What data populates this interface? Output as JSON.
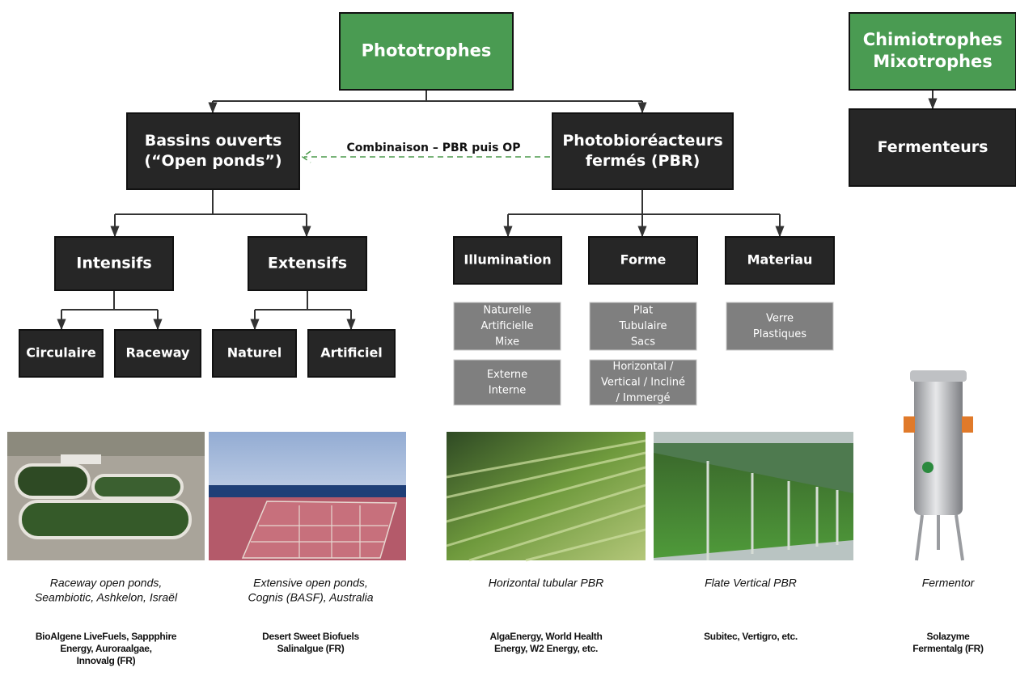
{
  "boxes": [
    {
      "lines": [
        "Phototrophes"
      ]
    },
    {
      "lines": [
        "Chimiotrophes",
        "Mixotrophes"
      ]
    },
    {
      "lines": [
        "Bassins ouverts",
        "(“Open ponds”)"
      ]
    },
    {
      "lines": [
        "Photobioréacteurs",
        "fermés (PBR)"
      ]
    },
    {
      "lines": [
        "Fermenteurs"
      ]
    },
    {
      "lines": [
        "Intensifs"
      ]
    },
    {
      "lines": [
        "Extensifs"
      ]
    },
    {
      "lines": [
        "Circulaire"
      ]
    },
    {
      "lines": [
        "Raceway"
      ]
    },
    {
      "lines": [
        "Naturel"
      ]
    },
    {
      "lines": [
        "Artificiel"
      ]
    },
    {
      "lines": [
        "Illumination"
      ]
    },
    {
      "lines": [
        "Forme"
      ]
    },
    {
      "lines": [
        "Materiau"
      ]
    },
    {
      "lines": [
        "Naturelle",
        "Artificielle",
        "Mixe"
      ]
    },
    {
      "lines": [
        "Externe",
        "Interne"
      ]
    },
    {
      "lines": [
        "Plat",
        "Tubulaire",
        "Sacs"
      ]
    },
    {
      "lines": [
        "Horizontal /",
        "Vertical / Incliné",
        "/ Immergé"
      ]
    },
    {
      "lines": [
        "Verre",
        "Plastiques"
      ]
    }
  ],
  "combination_label": "Combinaison – PBR puis OP",
  "captions": [
    {
      "title": [
        "Raceway open ponds,",
        "Seambiotic, Ashkelon, Israël"
      ],
      "companies": [
        "BioAlgene LiveFuels, Sappphire",
        "Energy, Auroraalgae,",
        "Innovalg (FR)"
      ]
    },
    {
      "title": [
        "Extensive open ponds,",
        "Cognis (BASF), Australia"
      ],
      "companies": [
        "Desert Sweet Biofuels",
        "Salinalgue (FR)"
      ]
    },
    {
      "title": [
        "Horizontal tubular PBR"
      ],
      "companies": [
        "AlgaEnergy, World Health",
        "Energy, W2 Energy, etc."
      ]
    },
    {
      "title": [
        "Flate Vertical PBR"
      ],
      "companies": [
        "Subitec, Vertigro, etc."
      ]
    },
    {
      "title": [
        "Fermentor"
      ],
      "companies": [
        "Solazyme",
        "Fermentalg (FR)"
      ]
    }
  ]
}
